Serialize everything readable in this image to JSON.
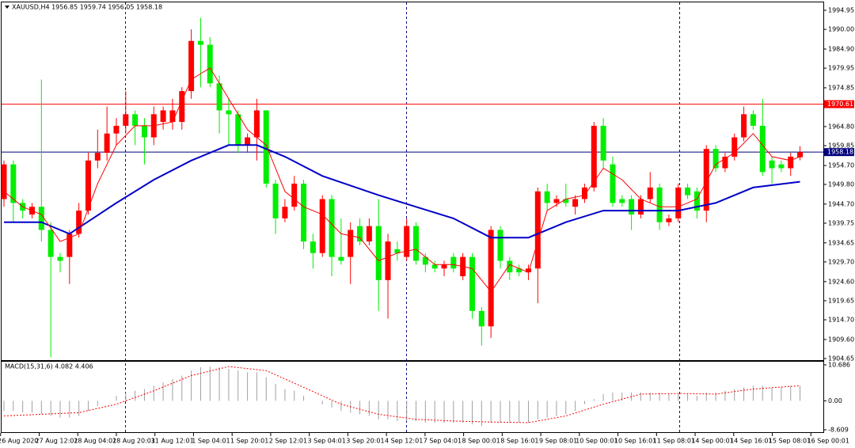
{
  "chart_data": {
    "type": "candlestick",
    "header": "XAUUSD,H4  1956.85 1959.74 1956.05 1958.18",
    "up_color": "#ff0000",
    "down_color": "#00ee00",
    "open": [
      1946,
      1955,
      1945,
      1942,
      1944,
      1938,
      1931,
      1931,
      1937,
      1943,
      1956,
      1958,
      1963,
      1965,
      1968,
      1965,
      1962,
      1966,
      1966,
      1966,
      1974,
      1987,
      1986,
      1976,
      1969,
      1968,
      1960,
      1962,
      1969,
      1950,
      1941,
      1944,
      1950,
      1935,
      1932,
      1946,
      1931,
      1931,
      1939,
      1935,
      1939,
      1925,
      1933,
      1931,
      1939,
      1931,
      1929,
      1928,
      1931,
      1926,
      1931,
      1917,
      1913,
      1938,
      1930,
      1928,
      1927,
      1928,
      1948,
      1945,
      1946,
      1944,
      1946,
      1949,
      1965,
      1955,
      1946,
      1946,
      1942,
      1946,
      1949,
      1940,
      1941,
      1949,
      1948,
      1943,
      1959,
      1954,
      1957,
      1962,
      1968,
      1965,
      1956,
      1955,
      1954,
      1956.85
    ],
    "high": [
      1956,
      1956,
      1946,
      1945,
      1977,
      1940,
      1932,
      1938,
      1945,
      1958,
      1964,
      1970,
      1967,
      1974,
      1969,
      1967,
      1970,
      1970,
      1972,
      1975,
      1990,
      1993,
      1988,
      1978,
      1972,
      1969,
      1963,
      1972,
      1969,
      1951,
      1946,
      1952,
      1951,
      1937,
      1947,
      1947,
      1941,
      1940,
      1941,
      1941,
      1946,
      1937,
      1935,
      1941,
      1940,
      1932,
      1930,
      1930,
      1932,
      1932,
      1932,
      1918,
      1939,
      1939,
      1931,
      1929,
      1929,
      1949,
      1950,
      1947,
      1950,
      1947,
      1950,
      1966,
      1967,
      1957,
      1947,
      1947,
      1947,
      1953,
      1950,
      1942,
      1950,
      1950,
      1949,
      1960,
      1960,
      1958,
      1963,
      1970,
      1969,
      1972,
      1957,
      1956,
      1958,
      1959.74
    ],
    "low": [
      1944,
      1940,
      1941,
      1941,
      1935,
      1905,
      1927,
      1924,
      1936,
      1942,
      1954,
      1956,
      1960,
      1963,
      1960,
      1955,
      1960,
      1964,
      1964,
      1964,
      1972,
      1975,
      1975,
      1963,
      1960,
      1958,
      1958,
      1956,
      1949,
      1937,
      1940,
      1943,
      1933,
      1928,
      1931,
      1926,
      1929,
      1924,
      1934,
      1934,
      1917,
      1915,
      1930,
      1930,
      1929,
      1927,
      1927,
      1926,
      1927,
      1925,
      1915,
      1908,
      1910,
      1928,
      1925,
      1926,
      1925,
      1919,
      1943,
      1944,
      1944,
      1942,
      1945,
      1948,
      1954,
      1944,
      1944,
      1938,
      1941,
      1945,
      1938,
      1939,
      1940,
      1946,
      1941,
      1940,
      1953,
      1953,
      1956,
      1961,
      1964,
      1952,
      1950,
      1953,
      1952,
      1956.05
    ],
    "close": [
      1955,
      1945,
      1943,
      1944,
      1938,
      1931,
      1930,
      1937,
      1943,
      1956,
      1958,
      1963,
      1965,
      1968,
      1965,
      1962,
      1968,
      1969,
      1969,
      1974,
      1987,
      1986,
      1976,
      1969,
      1968,
      1960,
      1962,
      1969,
      1950,
      1941,
      1944,
      1950,
      1935,
      1932,
      1946,
      1931,
      1930,
      1938,
      1935,
      1939,
      1925,
      1935,
      1932,
      1939,
      1930,
      1929,
      1928,
      1929,
      1928,
      1931,
      1917,
      1913,
      1938,
      1930,
      1927,
      1927,
      1928,
      1948,
      1945,
      1946,
      1945,
      1946,
      1949,
      1965,
      1956,
      1945,
      1945,
      1942,
      1946,
      1949,
      1940,
      1941,
      1949,
      1947,
      1943,
      1959,
      1954,
      1957,
      1962,
      1968,
      1965,
      1953,
      1954,
      1954,
      1957,
      1958.18
    ],
    "ma_lines": [
      {
        "color": "#0000c8",
        "x": [
          0,
          4,
          7,
          12,
          16,
          20,
          24,
          27,
          30,
          34,
          40,
          44,
          48,
          52,
          56,
          60,
          64,
          68,
          72,
          76,
          80,
          85
        ],
        "values": [
          1940,
          1940,
          1937,
          1945,
          1951,
          1956,
          1960,
          1960,
          1957,
          1952,
          1947,
          1944,
          1941,
          1936,
          1936,
          1940,
          1943,
          1943,
          1943,
          1945,
          1949,
          1950.5
        ]
      },
      {
        "color": "#ff0000",
        "x": [
          0,
          2,
          4,
          6,
          8,
          10,
          12,
          14,
          16,
          18,
          20,
          22,
          24,
          26,
          28,
          30,
          32,
          34,
          36,
          38,
          40,
          42,
          44,
          46,
          48,
          50,
          52,
          54,
          56,
          58,
          60,
          62,
          64,
          66,
          68,
          70,
          72,
          74,
          76,
          78,
          80,
          82,
          84,
          85
        ],
        "values": [
          1948,
          1944,
          1942,
          1935,
          1937,
          1950,
          1960,
          1965,
          1965,
          1966,
          1977,
          1980,
          1972,
          1964,
          1960,
          1948,
          1944,
          1942,
          1937,
          1936,
          1930,
          1932,
          1933,
          1929,
          1929,
          1928,
          1922,
          1929,
          1927,
          1943,
          1946,
          1947,
          1954,
          1951,
          1946,
          1944,
          1944,
          1946,
          1955,
          1958,
          1963,
          1957,
          1956,
          1957
        ]
      }
    ],
    "hlines": [
      {
        "value": 1970.61,
        "color": "#ff0000"
      },
      {
        "value": 1958.18,
        "color": "#000080"
      }
    ],
    "ylim": [
      1904.24,
      1997.0
    ],
    "yticks": [
      1994.95,
      {
        "value": 1990,
        "label": "1990.00"
      },
      {
        "value": 1984.9,
        "label": "1984.90"
      },
      1979.95,
      1974.85,
      {
        "value": 1964.8,
        "label": "1964.80"
      },
      1959.85,
      {
        "value": 1954.7,
        "label": "1954.70"
      },
      {
        "value": 1949.8,
        "label": "1949.80"
      },
      {
        "value": 1944.7,
        "label": "1944.70"
      },
      1939.75,
      1934.65,
      {
        "value": 1929.7,
        "label": "1929.70"
      },
      {
        "value": 1924.6,
        "label": "1924.60"
      },
      1919.65,
      {
        "value": 1914.7,
        "label": "1914.70"
      },
      {
        "value": 1909.6,
        "label": "1909.60"
      },
      1904.65
    ],
    "time_labels": [
      "26 Aug 2020",
      "27 Aug 12:01",
      "28 Aug 04:01",
      "28 Aug 20:01",
      "31 Aug 12:01",
      "1 Sep 04:01",
      "1 Sep 20:01",
      "2 Sep 12:01",
      "3 Sep 04:01",
      "3 Sep 20:01",
      "4 Sep 12:01",
      "7 Sep 04:01",
      "8 Sep 00:01",
      "8 Sep 16:01",
      "9 Sep 08:01",
      "10 Sep 00:01",
      "10 Sep 16:01",
      "11 Sep 08:01",
      "14 Sep 00:01",
      "14 Sep 16:01",
      "15 Sep 08:01",
      "16 Sep 00:01"
    ],
    "macd": {
      "label": "MACD(15,31,6) 4.082 4.406",
      "hist_color": "#a0a0a0",
      "signal_color": "#ff0000",
      "histogram": [
        -3,
        -3,
        -3.5,
        -3.5,
        -4,
        -4.5,
        -5,
        -5,
        -4.5,
        -3,
        -1.5,
        0,
        1.5,
        2.5,
        3,
        3.5,
        4.5,
        5.5,
        6.5,
        7.5,
        9,
        10,
        10.2,
        10,
        9.5,
        9,
        8.5,
        8.5,
        7,
        5,
        3.5,
        3,
        1.5,
        0,
        -1,
        -2,
        -3,
        -3.5,
        -4,
        -4.5,
        -5.5,
        -5.5,
        -6,
        -6,
        -6,
        -6.5,
        -6.5,
        -6.5,
        -6.5,
        -6.5,
        -7,
        -7.5,
        -6.5,
        -6.5,
        -6.5,
        -6.5,
        -6.5,
        -5.5,
        -5,
        -4.5,
        -4,
        -3,
        -1,
        0.5,
        2,
        2.5,
        2.5,
        2.5,
        2.5,
        2.5,
        2.5,
        2,
        2,
        2,
        1.5,
        2.5,
        2.5,
        3,
        3.5,
        4,
        4.5,
        4.5,
        4,
        4,
        4.5,
        4.5
      ],
      "signal_x": [
        0,
        4,
        8,
        12,
        16,
        20,
        24,
        28,
        32,
        36,
        40,
        44,
        48,
        52,
        56,
        60,
        64,
        68,
        72,
        76,
        80,
        85
      ],
      "signal": [
        -4.5,
        -4,
        -3.5,
        -1,
        3,
        7.5,
        10.2,
        9,
        4,
        -1,
        -4,
        -5.5,
        -6,
        -6.3,
        -6.5,
        -4.5,
        -1,
        2,
        2.2,
        2,
        3.5,
        4.5
      ],
      "ylim": [
        -9.55,
        11.63
      ],
      "yticks": [
        10.686,
        {
          "value": 0,
          "label": "0.00"
        },
        -8.609
      ]
    }
  }
}
